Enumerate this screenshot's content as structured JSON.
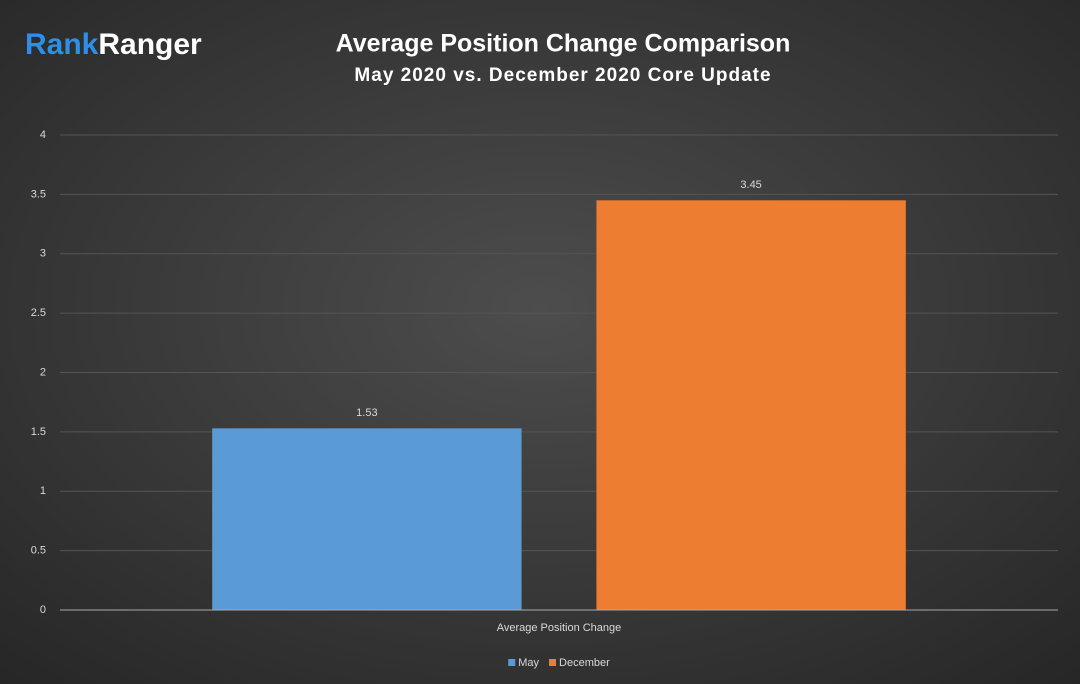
{
  "logo": {
    "first": "Rank",
    "second": "Ranger"
  },
  "chart_data": {
    "type": "bar",
    "title": "Average Position Change Comparison",
    "subtitle": "May 2020 vs. December 2020 Core Update",
    "categories": [
      "Average Position Change"
    ],
    "series": [
      {
        "name": "May",
        "color": "#5b9bd5",
        "values": [
          1.53
        ]
      },
      {
        "name": "December",
        "color": "#ed7d31",
        "values": [
          3.45
        ]
      }
    ],
    "ylim": [
      0,
      4
    ],
    "yticks": [
      0,
      0.5,
      1,
      1.5,
      2,
      2.5,
      3,
      3.5,
      4
    ],
    "grid": true,
    "legend": "bottom"
  }
}
